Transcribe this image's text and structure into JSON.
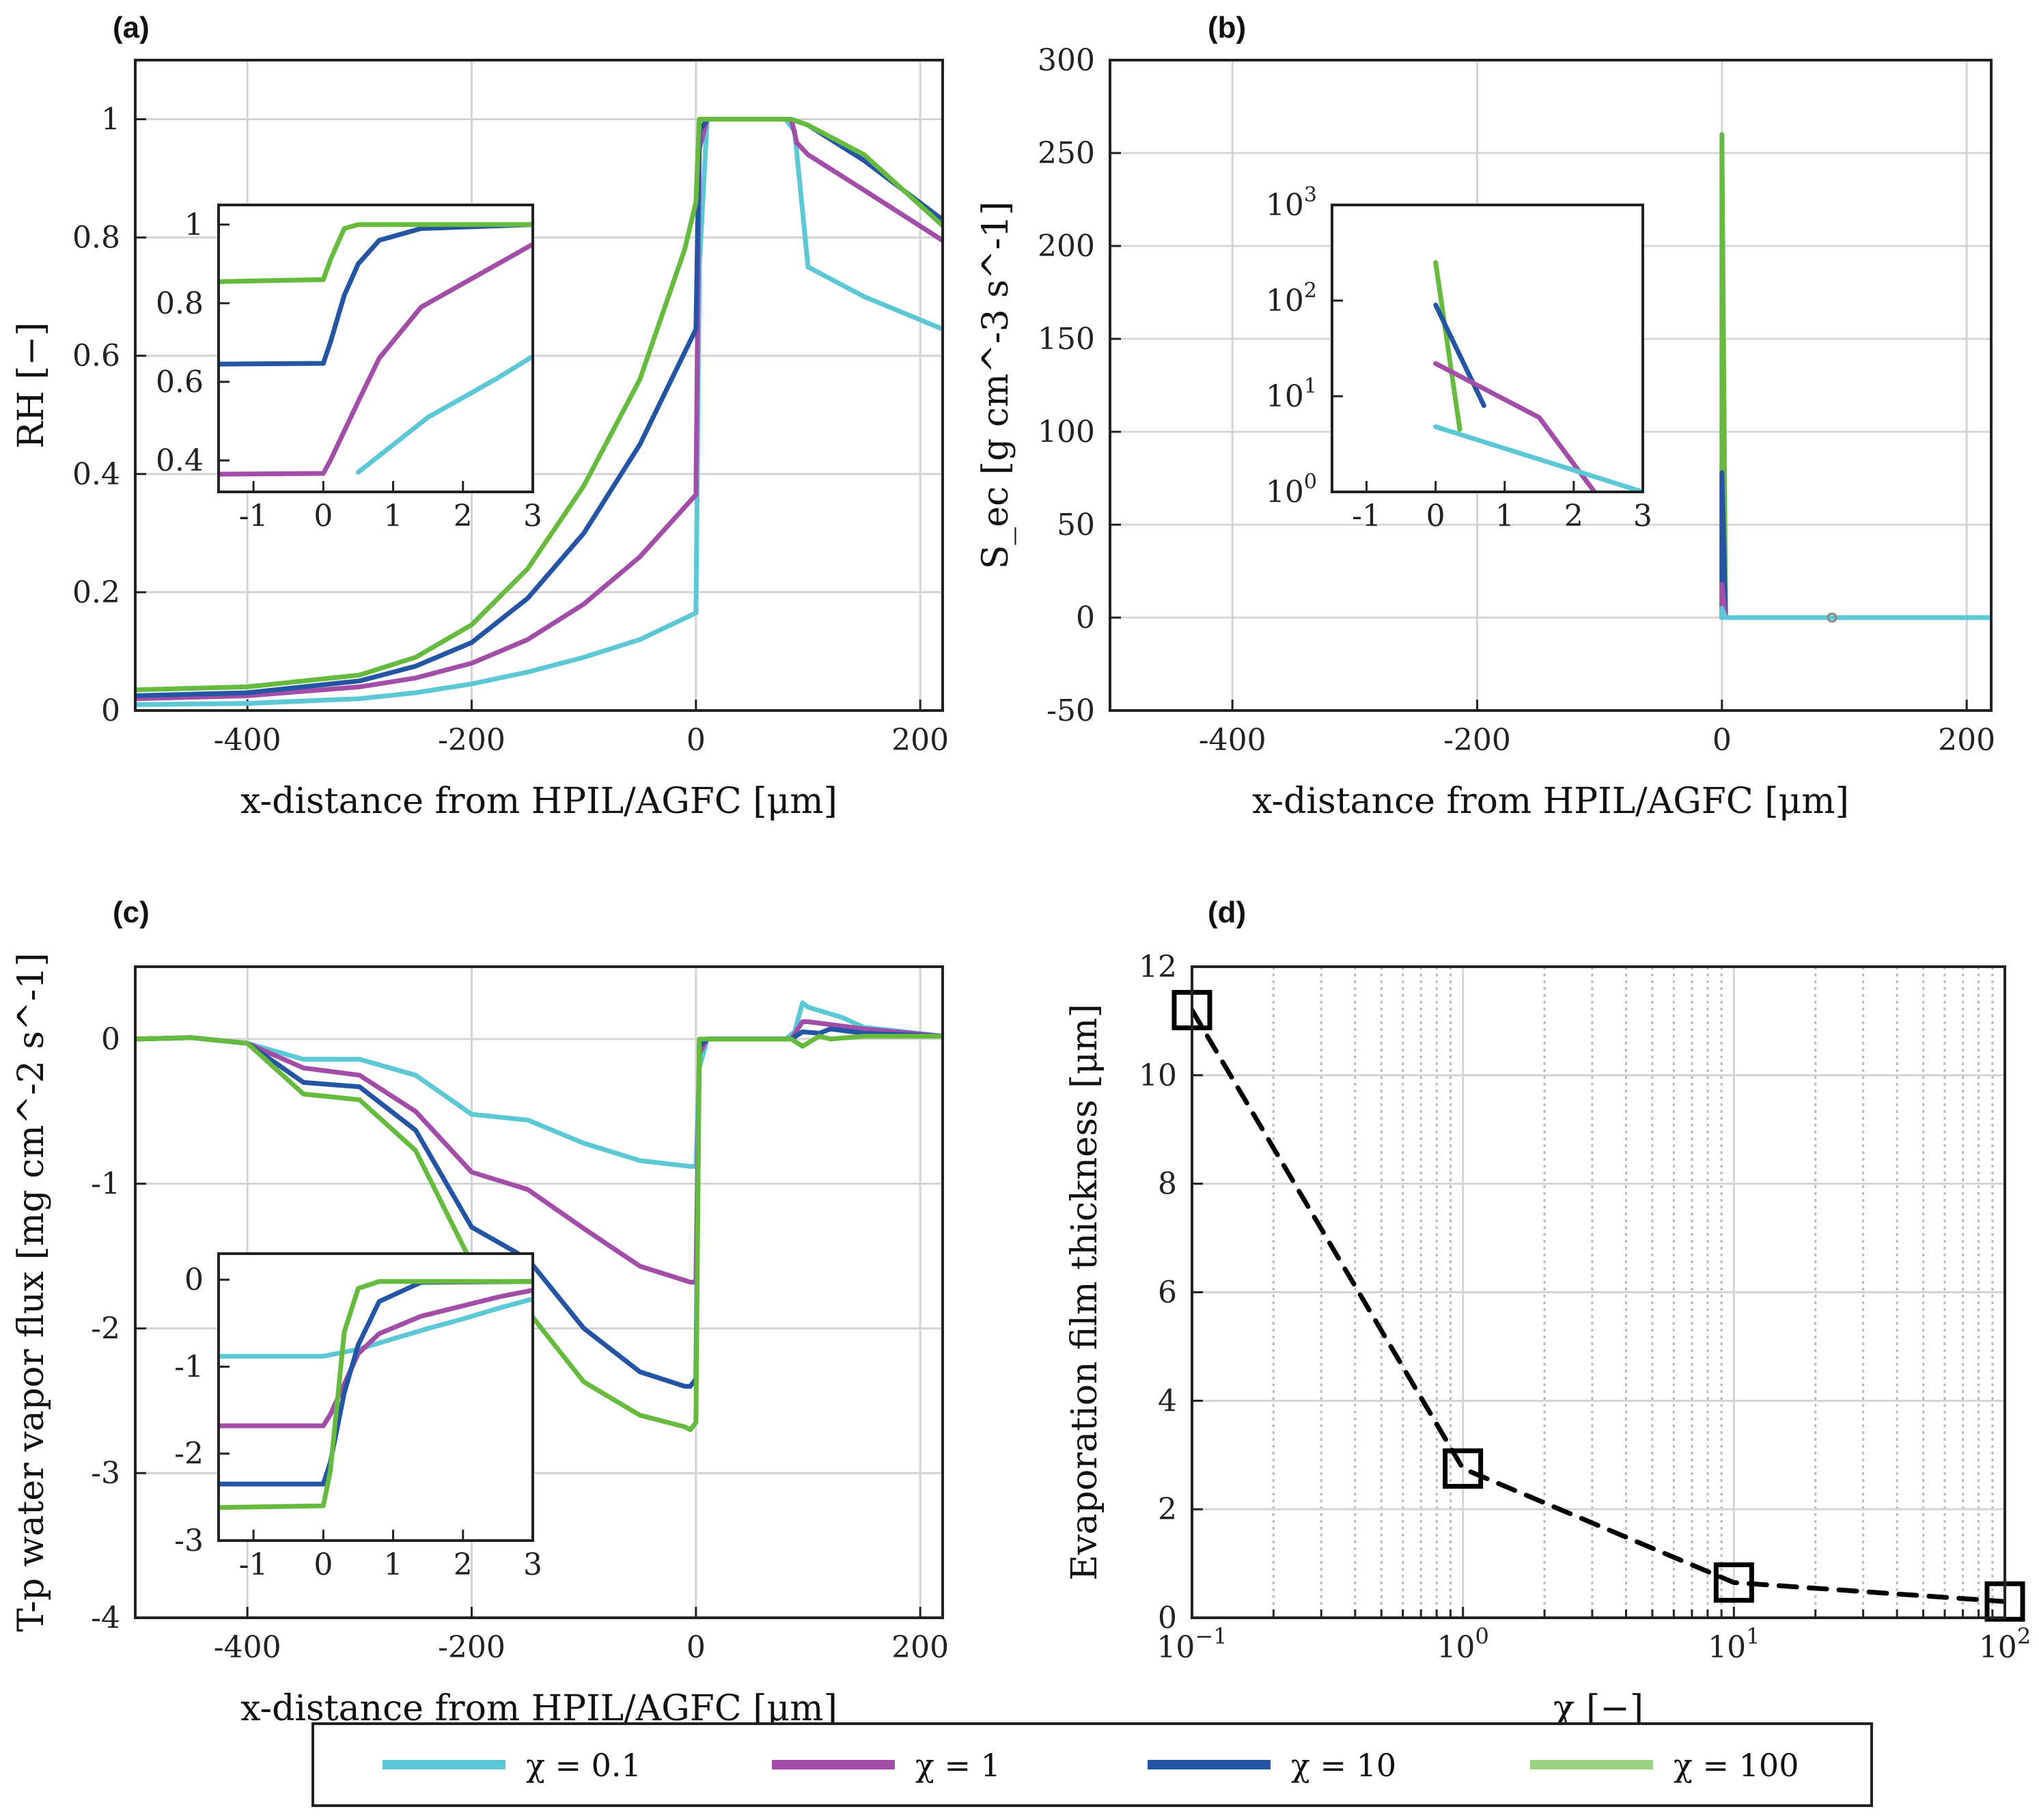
{
  "colors": {
    "chi_0_1": "#5cc8d6",
    "chi_1": "#a24ea8",
    "chi_10": "#2455a4",
    "chi_100": "#66bb3f"
  },
  "legend": {
    "entries": [
      "χ = 0.1",
      "χ = 1",
      "χ = 10",
      "χ = 100"
    ]
  },
  "chart_data": [
    {
      "panel": "(a)",
      "type": "line",
      "xlabel": "x-distance from HPIL/AGFC [μm]",
      "ylabel": "RH [−]",
      "xlim": [
        -500,
        220
      ],
      "ylim": [
        0,
        1.1
      ],
      "xticks": [
        -400,
        -200,
        0,
        200
      ],
      "xticklabels": [
        "-400",
        "-200",
        "0",
        "200"
      ],
      "yticks": [
        0,
        0.2,
        0.4,
        0.6,
        0.8,
        1
      ],
      "yticklabels": [
        "0",
        "0.2",
        "0.4",
        "0.6",
        "0.8",
        "1"
      ],
      "series": [
        {
          "name": "χ = 0.1",
          "color": "#5cc8d6",
          "x": [
            -500,
            -400,
            -300,
            -250,
            -200,
            -150,
            -100,
            -50,
            0,
            3,
            10,
            80,
            88,
            100,
            150,
            220
          ],
          "y": [
            0.01,
            0.012,
            0.02,
            0.03,
            0.045,
            0.065,
            0.09,
            0.12,
            0.165,
            0.75,
            1.0,
            1.0,
            0.98,
            0.75,
            0.7,
            0.645
          ]
        },
        {
          "name": "χ = 1",
          "color": "#a24ea8",
          "x": [
            -500,
            -400,
            -300,
            -250,
            -200,
            -150,
            -100,
            -50,
            0,
            3,
            10,
            85,
            90,
            100,
            150,
            220
          ],
          "y": [
            0.02,
            0.025,
            0.04,
            0.055,
            0.08,
            0.12,
            0.18,
            0.26,
            0.365,
            0.95,
            1.0,
            1.0,
            0.96,
            0.94,
            0.88,
            0.795
          ]
        },
        {
          "name": "χ = 10",
          "color": "#2455a4",
          "x": [
            -500,
            -400,
            -300,
            -250,
            -200,
            -150,
            -100,
            -50,
            0,
            3,
            10,
            85,
            100,
            150,
            220
          ],
          "y": [
            0.025,
            0.03,
            0.05,
            0.075,
            0.115,
            0.19,
            0.3,
            0.45,
            0.645,
            0.98,
            1.0,
            1.0,
            0.99,
            0.93,
            0.83
          ]
        },
        {
          "name": "χ = 100",
          "color": "#66bb3f",
          "x": [
            -500,
            -400,
            -300,
            -250,
            -200,
            -150,
            -100,
            -50,
            -10,
            0,
            3,
            10,
            85,
            100,
            150,
            220
          ],
          "y": [
            0.035,
            0.04,
            0.06,
            0.09,
            0.145,
            0.24,
            0.38,
            0.56,
            0.78,
            0.86,
            1.0,
            1.0,
            1.0,
            0.99,
            0.94,
            0.82
          ]
        }
      ],
      "inset": {
        "xlim": [
          -1.5,
          3
        ],
        "ylim": [
          0.32,
          1.05
        ],
        "xticks": [
          -1,
          0,
          1,
          2,
          3
        ],
        "xticklabels": [
          "-1",
          "0",
          "1",
          "2",
          "3"
        ],
        "yticks": [
          0.4,
          0.6,
          0.8,
          1
        ],
        "yticklabels": [
          "0.4",
          "0.6",
          "0.8",
          "1"
        ],
        "series": [
          {
            "name": "χ = 0.1",
            "x": [
              0.5,
              1,
              1.5,
              2,
              2.5,
              3
            ],
            "y": [
              0.37,
              0.44,
              0.51,
              0.56,
              0.61,
              0.665
            ]
          },
          {
            "name": "χ = 1",
            "x": [
              -1.5,
              0,
              0.1,
              0.5,
              0.8,
              1.4,
              2,
              2.5,
              3
            ],
            "y": [
              0.365,
              0.367,
              0.4,
              0.55,
              0.66,
              0.79,
              0.85,
              0.9,
              0.95
            ]
          },
          {
            "name": "χ = 10",
            "x": [
              -1.5,
              0,
              0.1,
              0.3,
              0.5,
              0.8,
              1.4,
              3
            ],
            "y": [
              0.645,
              0.647,
              0.7,
              0.82,
              0.9,
              0.96,
              0.99,
              1.0
            ]
          },
          {
            "name": "χ = 100",
            "x": [
              -1.5,
              0,
              0.1,
              0.3,
              0.5,
              3
            ],
            "y": [
              0.855,
              0.86,
              0.91,
              0.99,
              1.0,
              1.0
            ]
          }
        ]
      }
    },
    {
      "panel": "(b)",
      "type": "line",
      "xlabel": "x-distance from HPIL/AGFC [μm]",
      "ylabel": "S_ec [g cm^-3 s^-1]",
      "xlim": [
        -500,
        220
      ],
      "ylim": [
        -50,
        300
      ],
      "xticks": [
        -400,
        -200,
        0,
        200
      ],
      "xticklabels": [
        "-400",
        "-200",
        "0",
        "200"
      ],
      "yticks": [
        -50,
        0,
        50,
        100,
        150,
        200,
        250,
        300
      ],
      "yticklabels": [
        "-50",
        "0",
        "50",
        "100",
        "150",
        "200",
        "250",
        "300"
      ],
      "series": [
        {
          "name": "χ = 100",
          "color": "#66bb3f",
          "x": [
            0,
            0,
            3
          ],
          "y": [
            0,
            260,
            0
          ]
        },
        {
          "name": "χ = 10",
          "color": "#2455a4",
          "x": [
            0,
            0,
            3
          ],
          "y": [
            0,
            78,
            0
          ]
        },
        {
          "name": "χ = 1",
          "color": "#a24ea8",
          "x": [
            0,
            0,
            3
          ],
          "y": [
            0,
            18,
            0
          ]
        },
        {
          "name": "χ = 0.1",
          "color": "#5cc8d6",
          "x": [
            0,
            0,
            3,
            220
          ],
          "y": [
            0,
            5,
            0,
            0
          ]
        }
      ],
      "inset": {
        "xlim": [
          -1.5,
          3
        ],
        "ylim": [
          1,
          1000
        ],
        "yscale": "log",
        "xticks": [
          -1,
          0,
          1,
          2,
          3
        ],
        "xticklabels": [
          "-1",
          "0",
          "1",
          "2",
          "3"
        ],
        "yticks": [
          1,
          10,
          100,
          1000
        ],
        "ytickbase": "10",
        "ytickexp": [
          "0",
          "1",
          "2",
          "3"
        ],
        "series": [
          {
            "name": "χ = 100",
            "x": [
              0,
              0.35
            ],
            "y": [
              250,
              4.5
            ]
          },
          {
            "name": "χ = 10",
            "x": [
              0,
              0.7
            ],
            "y": [
              90,
              8
            ]
          },
          {
            "name": "χ = 1",
            "x": [
              0,
              1.5,
              2.3
            ],
            "y": [
              22,
              6,
              1
            ]
          },
          {
            "name": "χ = 0.1",
            "x": [
              0,
              3
            ],
            "y": [
              4.8,
              1
            ]
          }
        ]
      }
    },
    {
      "panel": "(c)",
      "type": "line",
      "xlabel": "x-distance from HPIL/AGFC [μm]",
      "ylabel": "T-p water vapor flux [mg cm^-2 s^-1]",
      "xlim": [
        -500,
        220
      ],
      "ylim": [
        -4,
        0.5
      ],
      "xticks": [
        -400,
        -200,
        0,
        200
      ],
      "xticklabels": [
        "-400",
        "-200",
        "0",
        "200"
      ],
      "yticks": [
        -4,
        -3,
        -2,
        -1,
        0
      ],
      "yticklabels": [
        "-4",
        "-3",
        "-2",
        "-1",
        "0"
      ],
      "series": [
        {
          "name": "χ = 0.1",
          "color": "#5cc8d6",
          "x": [
            -500,
            -450,
            -400,
            -350,
            -300,
            -250,
            -200,
            -150,
            -100,
            -50,
            -5,
            0,
            3,
            10,
            80,
            88,
            95,
            100,
            130,
            150,
            220
          ],
          "y": [
            0,
            0.01,
            -0.03,
            -0.14,
            -0.14,
            -0.25,
            -0.52,
            -0.56,
            -0.72,
            -0.84,
            -0.88,
            -0.88,
            -0.2,
            0,
            0,
            0.05,
            0.25,
            0.22,
            0.15,
            0.08,
            0.02
          ]
        },
        {
          "name": "χ = 1",
          "color": "#a24ea8",
          "x": [
            -500,
            -450,
            -400,
            -350,
            -300,
            -250,
            -200,
            -150,
            -100,
            -50,
            -5,
            0,
            3,
            10,
            85,
            95,
            100,
            150,
            220
          ],
          "y": [
            0,
            0.01,
            -0.03,
            -0.2,
            -0.25,
            -0.5,
            -0.92,
            -1.04,
            -1.31,
            -1.57,
            -1.68,
            -1.68,
            -0.1,
            0,
            0,
            0.12,
            0.12,
            0.07,
            0.02
          ]
        },
        {
          "name": "χ = 10",
          "color": "#2455a4",
          "x": [
            -500,
            -450,
            -400,
            -350,
            -300,
            -250,
            -200,
            -150,
            -100,
            -50,
            -10,
            -5,
            0,
            3,
            10,
            85,
            95,
            110,
            120,
            150,
            220
          ],
          "y": [
            0,
            0.01,
            -0.03,
            -0.3,
            -0.33,
            -0.63,
            -1.3,
            -1.52,
            -2.0,
            -2.3,
            -2.4,
            -2.4,
            -2.35,
            -0.05,
            0,
            0,
            0.05,
            0.04,
            0.07,
            0.04,
            0.02
          ]
        },
        {
          "name": "χ = 100",
          "color": "#66bb3f",
          "x": [
            -500,
            -450,
            -400,
            -350,
            -300,
            -250,
            -200,
            -150,
            -100,
            -50,
            -10,
            -5,
            0,
            3,
            10,
            85,
            95,
            110,
            120,
            150,
            220
          ],
          "y": [
            0,
            0.01,
            -0.03,
            -0.38,
            -0.42,
            -0.77,
            -1.55,
            -1.88,
            -2.37,
            -2.6,
            -2.68,
            -2.7,
            -2.65,
            0,
            0,
            0,
            -0.05,
            0.02,
            0.0,
            0.02,
            0.02
          ]
        }
      ],
      "inset": {
        "xlim": [
          -1.5,
          3
        ],
        "ylim": [
          -3,
          0.3
        ],
        "xticks": [
          -1,
          0,
          1,
          2,
          3
        ],
        "xticklabels": [
          "-1",
          "0",
          "1",
          "2",
          "3"
        ],
        "yticks": [
          -3,
          -2,
          -1,
          0
        ],
        "yticklabels": [
          "-3",
          "-2",
          "-1",
          "0"
        ],
        "series": [
          {
            "name": "χ = 0.1",
            "x": [
              -1.5,
              0,
              0.5,
              1,
              1.5,
              2,
              2.5,
              3
            ],
            "y": [
              -0.88,
              -0.88,
              -0.8,
              -0.68,
              -0.56,
              -0.45,
              -0.33,
              -0.22
            ]
          },
          {
            "name": "χ = 1",
            "x": [
              -1.5,
              0,
              0.1,
              0.3,
              0.5,
              0.8,
              1.4,
              2,
              2.5,
              3
            ],
            "y": [
              -1.68,
              -1.68,
              -1.55,
              -1.2,
              -0.85,
              -0.62,
              -0.42,
              -0.3,
              -0.2,
              -0.12
            ]
          },
          {
            "name": "χ = 10",
            "x": [
              -1.5,
              0,
              0.1,
              0.3,
              0.5,
              0.8,
              1.4,
              3
            ],
            "y": [
              -2.35,
              -2.35,
              -2.1,
              -1.3,
              -0.75,
              -0.25,
              -0.03,
              -0.02
            ]
          },
          {
            "name": "χ = 100",
            "x": [
              -1.5,
              0,
              0.1,
              0.3,
              0.5,
              0.8,
              3
            ],
            "y": [
              -2.62,
              -2.6,
              -2.2,
              -0.6,
              -0.1,
              -0.02,
              -0.02
            ]
          }
        ]
      }
    },
    {
      "panel": "(d)",
      "type": "line",
      "xlabel": "χ [−]",
      "ylabel": "Evaporation film thickness [μm]",
      "xscale": "log",
      "xlim": [
        0.1,
        100
      ],
      "ylim": [
        0,
        12
      ],
      "xticks": [
        0.1,
        1,
        10,
        100
      ],
      "xtickbase": "10",
      "xtickexp": [
        "−1",
        "0",
        "1",
        "2"
      ],
      "yticks": [
        0,
        2,
        4,
        6,
        8,
        10,
        12
      ],
      "yticklabels": [
        "0",
        "2",
        "4",
        "6",
        "8",
        "10",
        "12"
      ],
      "series": [
        {
          "name": "evaporation film thickness",
          "color": "#000000",
          "x": [
            0.1,
            1,
            10,
            100
          ],
          "y": [
            11.2,
            2.75,
            0.65,
            0.3
          ]
        }
      ]
    }
  ]
}
